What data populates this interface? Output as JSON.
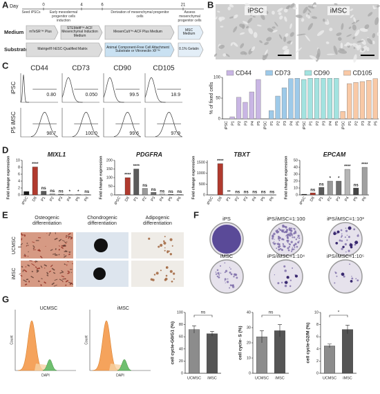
{
  "A": {
    "label": "A",
    "day_label": "Day",
    "days": [
      0,
      4,
      6,
      21
    ],
    "day_notes": [
      "Seed iPSCs",
      "Early mesodermal progenitor cells induction",
      "Derivation of mesenchymal progenitor cells",
      "Assess mesenchymal progenitor cells"
    ],
    "rows": [
      {
        "name": "Medium",
        "boxes": [
          "mTeSR™ Plus",
          "STEMdiff™-ACF Mesenchymal Induction Medium",
          "MesenCult™-ACF Plus Medium",
          "MSC Medium"
        ]
      },
      {
        "name": "Substrate",
        "boxes": [
          "Matrigel® hESC-Qualified Matrix",
          "Animal Component-Free Cell Attachment Substrate or Vitronectin XF™",
          "0.1% Gelatin"
        ]
      }
    ]
  },
  "B": {
    "label": "B",
    "images": [
      "iPSC",
      "iMSC"
    ]
  },
  "C": {
    "label": "C",
    "flow": {
      "markers": [
        "CD44",
        "CD73",
        "CD90",
        "CD105"
      ],
      "rows": [
        "iPSC",
        "P5 iMSC"
      ],
      "percentages": [
        [
          "0.80",
          "0.050",
          "99.5",
          "18.9"
        ],
        [
          "98.7",
          "100.0",
          "99.6",
          "97.9"
        ]
      ]
    },
    "chart": {
      "type": "bar",
      "ylabel": "% of fixed cells",
      "categories": [
        "iPSC",
        "P1",
        "P2",
        "P3",
        "P4",
        "P5"
      ],
      "ylim": [
        0,
        100
      ],
      "yticks": [
        0,
        50,
        100
      ],
      "series": [
        {
          "name": "CD44",
          "color": "#c9b6e4",
          "values": [
            0,
            5,
            52,
            40,
            65,
            95
          ]
        },
        {
          "name": "CD73",
          "color": "#9ecae9",
          "values": [
            0,
            20,
            55,
            75,
            97,
            98
          ]
        },
        {
          "name": "CD90",
          "color": "#a3e3e0",
          "values": [
            95,
            98,
            98,
            98,
            98,
            98
          ]
        },
        {
          "name": "CD105",
          "color": "#f9c9a6",
          "values": [
            18,
            85,
            88,
            90,
            93,
            97
          ]
        }
      ]
    }
  },
  "D": {
    "label": "D",
    "ylabel": "Fold change expression",
    "categories": [
      "iPSC",
      "D8",
      "P1",
      "P2",
      "P3",
      "P4",
      "P5",
      "P6"
    ],
    "colors": [
      "#1a1a1a",
      "#b03a2e",
      "#5a5a5a",
      "#9a9a9a",
      "#6e6e6e",
      "#b5b5b5",
      "#444444",
      "#a0a0a0"
    ],
    "charts": [
      {
        "type": "bar",
        "title": "MIXL1",
        "ylim": [
          0,
          10
        ],
        "yticks": [
          0,
          2,
          4,
          6,
          8,
          10
        ],
        "values": [
          1,
          8.1,
          1.1,
          0.3,
          0.2,
          0.1,
          0.1,
          0.1
        ],
        "annotations": [
          null,
          "****",
          "ns",
          "ns",
          "ns",
          "*",
          "*",
          "ns"
        ]
      },
      {
        "type": "bar",
        "title": "PDGFRA",
        "ylim": [
          0,
          200
        ],
        "yticks": [
          0,
          50,
          100,
          150,
          200
        ],
        "values": [
          1,
          100,
          150,
          38,
          15,
          5,
          3,
          3
        ],
        "annotations": [
          null,
          "****",
          "****",
          "ns",
          "ns",
          "ns",
          "ns",
          "ns"
        ]
      },
      {
        "type": "bar",
        "title": "TBXT",
        "ylim": [
          0,
          1600
        ],
        "yticks": [
          0,
          500,
          1000,
          1500
        ],
        "values": [
          1,
          1450,
          8,
          4,
          2,
          0.5,
          0.2,
          0.2
        ],
        "annotations": [
          null,
          "****",
          "**",
          "ns",
          "ns",
          "ns",
          "ns",
          "ns"
        ]
      },
      {
        "type": "bar",
        "title": "EPCAM",
        "ylim": [
          0,
          50
        ],
        "yticks": [
          0,
          10,
          20,
          30,
          40,
          50
        ],
        "values": [
          1,
          3,
          11,
          20,
          20,
          37,
          10,
          40
        ],
        "annotations": [
          null,
          "ns",
          "ns",
          "*",
          "*",
          "****",
          "ns",
          "****"
        ]
      }
    ]
  },
  "E": {
    "label": "E",
    "columns": [
      "Osteogenic differentiation",
      "Chondrogenic differentiation",
      "Adipogenic differentiation"
    ],
    "rows": [
      "UCMSC",
      "iMSC"
    ]
  },
  "F": {
    "label": "F",
    "plates": [
      "iPS",
      "iPS/iMSC=1:100",
      "iPS/iMSC=1:10³",
      "iMSC",
      "iPS/iMSC=1:10⁴",
      "iPS/iMSC=1:10⁵"
    ]
  },
  "G": {
    "label": "G",
    "flow": {
      "samples": [
        "UCMSC",
        "iMSC"
      ],
      "xlabel": "DAPI",
      "ylabel": "Count"
    },
    "categories": [
      "UCMSC",
      "iMSC"
    ],
    "colors": [
      "#8c8c8c",
      "#555555"
    ],
    "charts": [
      {
        "type": "bar",
        "ylabel": "cell cycle-G0/G1 (%)",
        "ylim": [
          0,
          100
        ],
        "yticks": [
          0,
          20,
          40,
          60,
          80,
          100
        ],
        "values": [
          72,
          65
        ],
        "errors": [
          6,
          4
        ],
        "sig": "ns"
      },
      {
        "type": "bar",
        "ylabel": "cell cycle- S (%)",
        "ylim": [
          0,
          40
        ],
        "yticks": [
          0,
          10,
          20,
          30,
          40
        ],
        "values": [
          24,
          28
        ],
        "errors": [
          4,
          4
        ],
        "sig": "ns"
      },
      {
        "type": "bar",
        "ylabel": "cell cycle-G2/M (%)",
        "ylim": [
          0,
          10
        ],
        "yticks": [
          0,
          2,
          4,
          6,
          8,
          10
        ],
        "values": [
          4.5,
          7.2
        ],
        "errors": [
          0.3,
          0.7
        ],
        "sig": "*"
      }
    ]
  }
}
